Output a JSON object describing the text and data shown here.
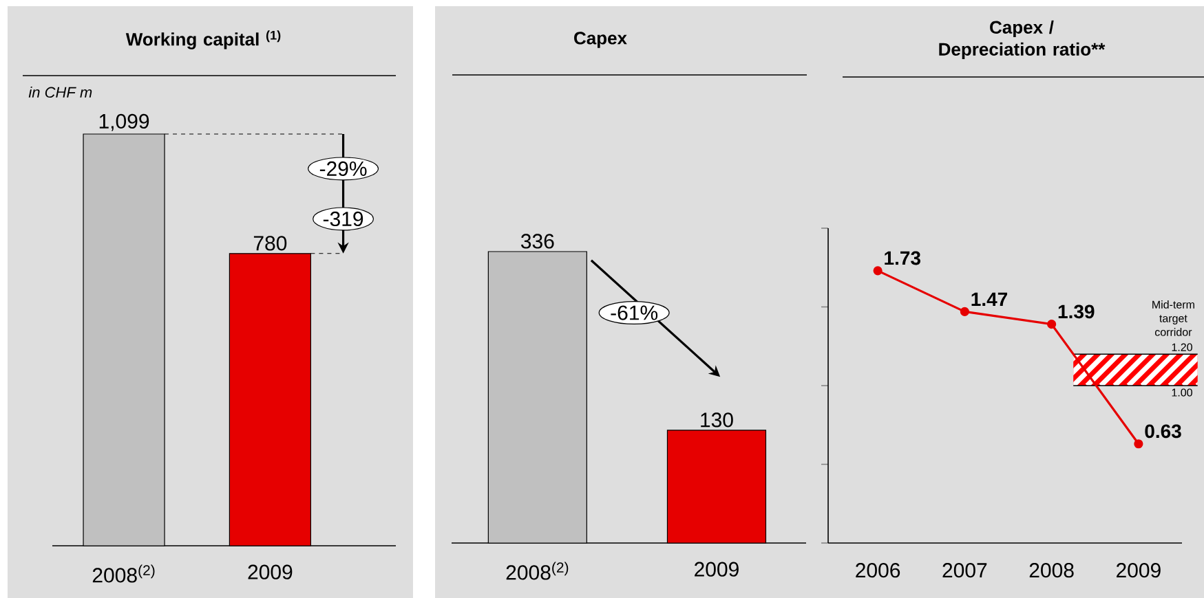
{
  "chart_data": [
    {
      "type": "bar",
      "title": "Working capital $^{(1)}$",
      "categories": [
        "2008$^{(2)}$",
        "2009"
      ],
      "values": [
        1099,
        780
      ],
      "colors": [
        "#c0c0c0",
        "#e60000"
      ],
      "value_labels": [
        "1,099",
        "780"
      ],
      "annotations": [
        "in CHF m",
        "-29%",
        "-319"
      ]
    },
    {
      "type": "bar",
      "title": "Capex",
      "categories": [
        "2008$^{(2)}$",
        "2009"
      ],
      "values": [
        336,
        130
      ],
      "colors": [
        "#c0c0c0",
        "#e60000"
      ],
      "data_labels": true,
      "annotations": [
        "-61%"
      ]
    },
    {
      "type": "line",
      "title": "Capex / Depreciation ratio**",
      "categories": [
        "2006",
        "2007",
        "2008",
        "2009"
      ],
      "series": [
        {
          "color": "#e60000",
          "values": [
            1.73,
            1.47,
            1.39,
            0.63
          ]
        }
      ],
      "ylim": [
        0,
        2
      ],
      "yticks": [
        {
          "value": 0,
          "label": null
        },
        {
          "value": 0.5,
          "label": null
        },
        {
          "value": 1,
          "label": null
        },
        {
          "value": 1.5,
          "label": null
        },
        {
          "value": 2,
          "label": null
        }
      ],
      "tick_labels": "x",
      "data_labels": true,
      "marker": "circle",
      "bands": [
        {
          "axis": "y",
          "from": 1.0,
          "to": 1.2,
          "label": "Mid-term target corridor",
          "color": "#ff0000"
        }
      ],
      "annotations": [
        {
          "text": "1.20",
          "y": 1.2
        },
        {
          "text": "1.00",
          "y": 1.0
        }
      ]
    }
  ]
}
